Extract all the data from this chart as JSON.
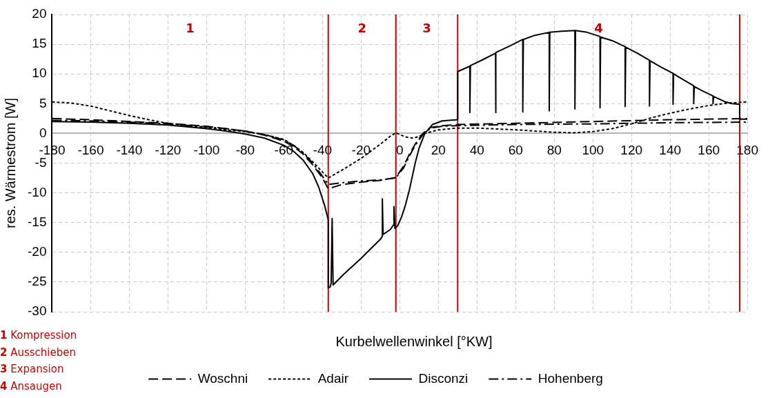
{
  "chart_data": {
    "type": "line",
    "xlabel": "Kurbelwellenwinkel [°KW]",
    "ylabel": "res. Wärmestrom [W]",
    "xlim": [
      -180,
      180
    ],
    "xticks": [
      -180,
      -160,
      -140,
      -120,
      -100,
      -80,
      -60,
      -40,
      -20,
      0,
      20,
      40,
      60,
      80,
      100,
      120,
      140,
      160,
      180
    ],
    "ylim": [
      -30,
      20
    ],
    "yticks": [
      -30,
      -25,
      -20,
      -15,
      -10,
      -5,
      0,
      5,
      10,
      15,
      20
    ],
    "grid": true,
    "legend": "bottom",
    "marker": "none",
    "ref_lines": [
      {
        "axis": "x",
        "value": -37,
        "color": "#c00000"
      },
      {
        "axis": "x",
        "value": -2,
        "color": "#c00000"
      },
      {
        "axis": "x",
        "value": 30,
        "color": "#c00000"
      },
      {
        "axis": "x",
        "value": 176,
        "color": "#c00000"
      }
    ],
    "annotations": [
      "1",
      "2",
      "3",
      "4",
      "1 Kompression",
      "2 Ausschieben",
      "3 Expansion",
      "4 Ansaugen"
    ],
    "series": [
      {
        "name": "Woschni",
        "color": "#000000",
        "line_style": "dashed",
        "x": [
          -180,
          -160,
          -140,
          -120,
          -100,
          -90,
          -80,
          -70,
          -60,
          -55,
          -50,
          -45,
          -40,
          -37,
          -30,
          -20,
          -10,
          -2,
          2,
          5,
          8,
          12,
          16,
          22,
          30,
          60,
          100,
          140,
          180
        ],
        "values": [
          2.5,
          2.3,
          2.0,
          1.7,
          1.2,
          0.8,
          0.4,
          -0.3,
          -1.3,
          -2.2,
          -3.5,
          -5.3,
          -7.5,
          -9.3,
          -8.6,
          -8.2,
          -7.9,
          -7.4,
          -5.5,
          -3.5,
          -1.8,
          0,
          1.0,
          1.3,
          1.5,
          1.7,
          2.0,
          2.3,
          2.5
        ]
      },
      {
        "name": "Adair",
        "color": "#000000",
        "line_style": "dotted",
        "x": [
          -180,
          -170,
          -160,
          -150,
          -140,
          -130,
          -120,
          -110,
          -100,
          -90,
          -80,
          -70,
          -60,
          -55,
          -50,
          -45,
          -40,
          -37,
          -30,
          -20,
          -10,
          -5,
          -2,
          3,
          7,
          10,
          13,
          20,
          30,
          40,
          60,
          80,
          90,
          100,
          110,
          120,
          130,
          140,
          150,
          160,
          170,
          180
        ],
        "values": [
          5.3,
          5.1,
          4.6,
          3.8,
          3.0,
          2.3,
          1.7,
          1.3,
          1.0,
          0.6,
          0.3,
          -0.2,
          -1.0,
          -2.0,
          -3.2,
          -4.8,
          -6.5,
          -7.5,
          -6.2,
          -4.2,
          -1.8,
          -0.5,
          0.1,
          -0.6,
          -0.8,
          -0.5,
          0,
          0.6,
          0.9,
          0.9,
          0.6,
          0.2,
          0.1,
          0.3,
          0.8,
          1.6,
          2.6,
          3.4,
          4.1,
          4.7,
          5.1,
          5.3
        ]
      },
      {
        "name": "Disconzi",
        "color": "#000000",
        "line_style": "solid",
        "x": [
          -180,
          -160,
          -140,
          -120,
          -100,
          -90,
          -80,
          -70,
          -60,
          -55,
          -50,
          -45,
          -42,
          -39,
          -37,
          -37,
          -36,
          -35.5,
          -35,
          -34.5,
          -30,
          -20,
          -10,
          -9,
          -9,
          -8.6,
          -5,
          -3,
          -3,
          -2.5,
          -1,
          1,
          3,
          5,
          8,
          10,
          13,
          17,
          22,
          30,
          30,
          36.3,
          36.3,
          36.6,
          43,
          49.6,
          49.6,
          49.9,
          57,
          63.7,
          63.7,
          64,
          70,
          77.4,
          77.4,
          77.7,
          84,
          90.7,
          90.7,
          91,
          97,
          103.7,
          103.7,
          104,
          110,
          116.7,
          116.7,
          117,
          123,
          129.3,
          129.3,
          129.6,
          135,
          141.5,
          141.5,
          141.8,
          147,
          152.2,
          152.2,
          152.5,
          157,
          162.2,
          162.2,
          162.5,
          168.5,
          168.5,
          168.8,
          172,
          176,
          176,
          180
        ],
        "values": [
          2.0,
          1.9,
          1.7,
          1.4,
          0.8,
          0.4,
          -0.1,
          -0.8,
          -2.0,
          -3.0,
          -4.5,
          -6.8,
          -9.0,
          -12.0,
          -14.5,
          -26,
          -25.8,
          -25.2,
          -14.3,
          -25.5,
          -24.0,
          -21.0,
          -17.8,
          -17.3,
          -11,
          -17.0,
          -16.2,
          -15.3,
          -12.3,
          -16,
          -15.5,
          -14.0,
          -12,
          -9.5,
          -5.0,
          -2.5,
          0,
          1.5,
          2.1,
          2.3,
          10.4,
          11.3,
          3.5,
          11.4,
          12.4,
          13.5,
          3.5,
          13.6,
          14.7,
          15.8,
          3.6,
          15.8,
          16.5,
          17.0,
          3.8,
          17.0,
          17.2,
          17.3,
          4.1,
          17.3,
          17.0,
          16.3,
          4.3,
          16.2,
          15.6,
          14.6,
          4.5,
          14.5,
          13.5,
          12.3,
          4.6,
          12.2,
          11.2,
          10.1,
          4.9,
          10.0,
          9.0,
          8.0,
          5.0,
          7.9,
          7.1,
          6.3,
          5.0,
          6.2,
          5.3,
          5.2,
          5.3,
          5.0,
          4.9,
          2.4,
          2.4
        ]
      },
      {
        "name": "Hohenberg",
        "color": "#000000",
        "line_style": "dashdot",
        "x": [
          -180,
          -160,
          -140,
          -120,
          -100,
          -90,
          -80,
          -70,
          -60,
          -55,
          -50,
          -45,
          -40,
          -37,
          -30,
          -20,
          -10,
          -2,
          2,
          5,
          8,
          12,
          16,
          22,
          30,
          60,
          100,
          140,
          180
        ],
        "values": [
          2.2,
          2.1,
          1.9,
          1.6,
          1.1,
          0.8,
          0.4,
          -0.2,
          -1.1,
          -2.0,
          -3.3,
          -5.0,
          -7.2,
          -8.6,
          -8.3,
          -8.0,
          -7.8,
          -7.5,
          -5.8,
          -3.8,
          -2.0,
          -0.2,
          0.9,
          1.2,
          1.3,
          1.5,
          1.6,
          1.8,
          1.9
        ]
      }
    ]
  }
}
